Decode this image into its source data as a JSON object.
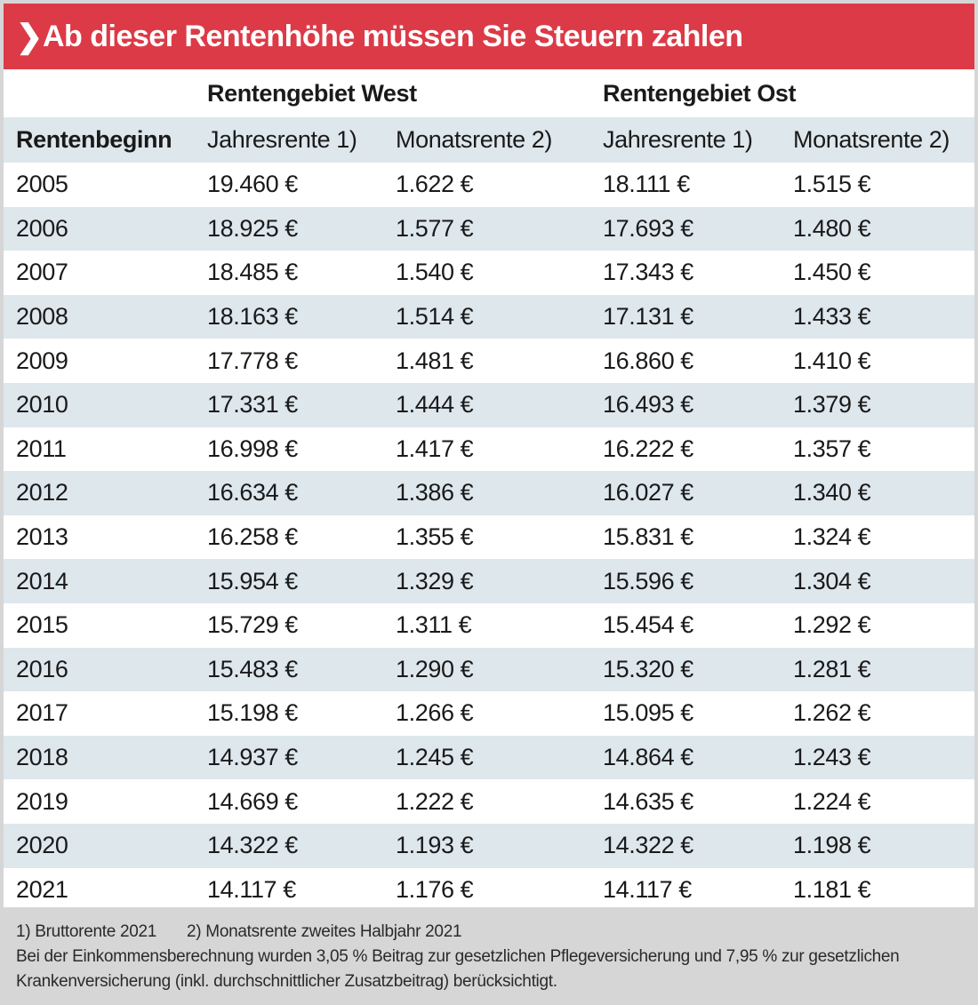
{
  "title": "Ab dieser Rentenhöhe müssen Sie Steuern zahlen",
  "title_icon": "chevron-right-icon",
  "colors": {
    "accent": "#dc3a47",
    "row_tint": "#dde7ec",
    "footer_bg": "#d6d6d6"
  },
  "groups": {
    "west": "Rentengebiet West",
    "ost": "Rentengebiet Ost"
  },
  "columns": [
    "Rentenbeginn",
    "Jahresrente 1)",
    "Monatsrente 2)",
    "Jahresrente 1)",
    "Monatsrente 2)"
  ],
  "rows": [
    [
      "2005",
      "19.460 €",
      "1.622 €",
      "18.111 €",
      "1.515 €"
    ],
    [
      "2006",
      "18.925 €",
      "1.577 €",
      "17.693 €",
      "1.480 €"
    ],
    [
      "2007",
      "18.485 €",
      "1.540 €",
      "17.343 €",
      "1.450 €"
    ],
    [
      "2008",
      "18.163 €",
      "1.514 €",
      "17.131 €",
      "1.433 €"
    ],
    [
      "2009",
      "17.778 €",
      "1.481 €",
      "16.860 €",
      "1.410 €"
    ],
    [
      "2010",
      "17.331 €",
      "1.444 €",
      "16.493 €",
      "1.379 €"
    ],
    [
      "2011",
      "16.998 €",
      "1.417 €",
      "16.222 €",
      "1.357 €"
    ],
    [
      "2012",
      "16.634 €",
      "1.386 €",
      "16.027 €",
      "1.340 €"
    ],
    [
      "2013",
      "16.258 €",
      "1.355 €",
      "15.831 €",
      "1.324 €"
    ],
    [
      "2014",
      "15.954 €",
      "1.329 €",
      "15.596 €",
      "1.304 €"
    ],
    [
      "2015",
      "15.729 €",
      "1.311 €",
      "15.454 €",
      "1.292 €"
    ],
    [
      "2016",
      "15.483 €",
      "1.290 €",
      "15.320 €",
      "1.281 €"
    ],
    [
      "2017",
      "15.198 €",
      "1.266 €",
      "15.095 €",
      "1.262 €"
    ],
    [
      "2018",
      "14.937 €",
      "1.245 €",
      "14.864 €",
      "1.243 €"
    ],
    [
      "2019",
      "14.669 €",
      "1.222 €",
      "14.635 €",
      "1.224 €"
    ],
    [
      "2020",
      "14.322 €",
      "1.193 €",
      "14.322 €",
      "1.198 €"
    ],
    [
      "2021",
      "14.117 €",
      "1.176 €",
      "14.117 €",
      "1.181 €"
    ]
  ],
  "footer": {
    "note1": "1) Bruttorente 2021",
    "note2": "2) Monatsrente zweites Halbjahr 2021",
    "text": "Bei der Einkommensberechnung wurden 3,05 % Beitrag zur gesetzlichen Pflegeversicherung und 7,95 % zur gesetzlichen Krankenversicherung (inkl. durchschnittlicher Zusatzbeitrag) berücksichtigt."
  }
}
